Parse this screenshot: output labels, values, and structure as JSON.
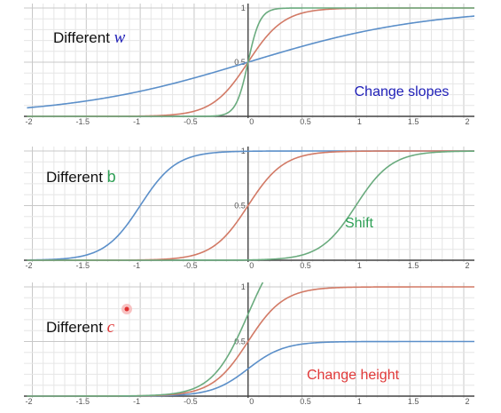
{
  "colors": {
    "blue": "#5b8fc9",
    "red": "#d27a66",
    "green": "#6aab7e",
    "label_blue": "#2020b8",
    "label_green": "#2e9f55",
    "label_red": "#e03838"
  },
  "chart_data": [
    {
      "type": "line",
      "title": "",
      "xlim": [
        -2.05,
        2.1
      ],
      "ylim": [
        0,
        1.02
      ],
      "x_ticks": [
        "-2",
        "-1.5",
        "-1",
        "-0.5",
        "0",
        "0.5",
        "1",
        "1.5",
        "2"
      ],
      "y_ticks": [
        "0.5",
        "1"
      ],
      "grid": true,
      "label_prefix": "Different ",
      "label_var": "w",
      "note": "Change slopes",
      "series": [
        {
          "color": "blue",
          "w": 1.2,
          "b": 0,
          "c": 1
        },
        {
          "color": "red",
          "w": 6,
          "b": 0,
          "c": 1
        },
        {
          "color": "green",
          "w": 18,
          "b": 0,
          "c": 1
        }
      ]
    },
    {
      "type": "line",
      "title": "",
      "xlim": [
        -2.05,
        2.1
      ],
      "ylim": [
        0,
        1.02
      ],
      "x_ticks": [
        "-2",
        "-1.5",
        "-1",
        "-0.5",
        "0",
        "0.5",
        "1",
        "1.5",
        "2"
      ],
      "y_ticks": [
        "0.5",
        "1"
      ],
      "grid": true,
      "label_prefix": "Different ",
      "label_var": "b",
      "note": "Shift",
      "series": [
        {
          "color": "blue",
          "w": 6,
          "b": -1,
          "c": 1
        },
        {
          "color": "red",
          "w": 6,
          "b": 0,
          "c": 1
        },
        {
          "color": "green",
          "w": 6,
          "b": 1,
          "c": 1
        }
      ]
    },
    {
      "type": "line",
      "title": "",
      "xlim": [
        -2.05,
        2.1
      ],
      "ylim": [
        0,
        1.02
      ],
      "x_ticks": [
        "-2",
        "-1.5",
        "-1",
        "-0.5",
        "0",
        "0.5",
        "1",
        "1.5",
        "2"
      ],
      "y_ticks": [
        "0.5",
        "1"
      ],
      "grid": true,
      "label_prefix": "Different ",
      "label_var": "c",
      "note": "Change height",
      "series": [
        {
          "color": "blue",
          "w": 6,
          "b": 0,
          "c": 0.5
        },
        {
          "color": "red",
          "w": 6,
          "b": 0,
          "c": 1
        },
        {
          "color": "green",
          "w": 6,
          "b": 0,
          "c": 1.5
        }
      ]
    }
  ]
}
